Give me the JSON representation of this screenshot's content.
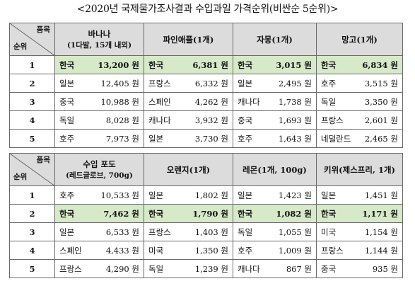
{
  "title": "<2020년 국제물가조사결과 수입과일 가격순위(비싼순 5순위)>",
  "table1": {
    "corner_top": "품목",
    "corner_bottom": "순위",
    "columns": [
      {
        "name": "바나나",
        "sub": "(1다발, 15개 내외)"
      },
      {
        "name": "파인애플(1개)",
        "sub": ""
      },
      {
        "name": "자몽(1개)",
        "sub": ""
      },
      {
        "name": "망고(1개)",
        "sub": ""
      }
    ],
    "rows": [
      {
        "rank": "1",
        "highlight": true,
        "cells": [
          {
            "country": "한국",
            "price": "13,200 원"
          },
          {
            "country": "한국",
            "price": "6,381 원"
          },
          {
            "country": "한국",
            "price": "3,015 원"
          },
          {
            "country": "한국",
            "price": "6,834 원"
          }
        ]
      },
      {
        "rank": "2",
        "highlight": false,
        "cells": [
          {
            "country": "일본",
            "price": "12,405 원"
          },
          {
            "country": "프랑스",
            "price": "6,332 원"
          },
          {
            "country": "일본",
            "price": "2,495 원"
          },
          {
            "country": "호주",
            "price": "3,515 원"
          }
        ]
      },
      {
        "rank": "3",
        "highlight": false,
        "cells": [
          {
            "country": "중국",
            "price": "10,988 원"
          },
          {
            "country": "스페인",
            "price": "4,262 원"
          },
          {
            "country": "캐나다",
            "price": "1,738 원"
          },
          {
            "country": "독일",
            "price": "3,350 원"
          }
        ]
      },
      {
        "rank": "4",
        "highlight": false,
        "cells": [
          {
            "country": "독일",
            "price": "8,028 원"
          },
          {
            "country": "캐나다",
            "price": "3,932 원"
          },
          {
            "country": "중국",
            "price": "1,693 원"
          },
          {
            "country": "프랑스",
            "price": "2,601 원"
          }
        ]
      },
      {
        "rank": "5",
        "highlight": false,
        "cells": [
          {
            "country": "호주",
            "price": "7,973 원"
          },
          {
            "country": "일본",
            "price": "3,730 원"
          },
          {
            "country": "호주",
            "price": "1,643 원"
          },
          {
            "country": "네덜란드",
            "price": "2,465 원"
          }
        ]
      }
    ]
  },
  "table2": {
    "corner_top": "품목",
    "corner_bottom": "순위",
    "columns": [
      {
        "name": "수입 포도",
        "sub": "(레드글로브, 700g)"
      },
      {
        "name": "오렌지(1개)",
        "sub": ""
      },
      {
        "name": "레몬(1개, 100g)",
        "sub": ""
      },
      {
        "name": "키위(제스프리, 1개)",
        "sub": ""
      }
    ],
    "rows": [
      {
        "rank": "1",
        "highlight": false,
        "cells": [
          {
            "country": "호주",
            "price": "10,533 원"
          },
          {
            "country": "일본",
            "price": "1,802 원"
          },
          {
            "country": "일본",
            "price": "1,423 원"
          },
          {
            "country": "일본",
            "price": "1,451 원"
          }
        ]
      },
      {
        "rank": "2",
        "highlight": true,
        "cells": [
          {
            "country": "한국",
            "price": "7,462 원"
          },
          {
            "country": "한국",
            "price": "1,790 원"
          },
          {
            "country": "한국",
            "price": "1,082 원"
          },
          {
            "country": "한국",
            "price": "1,171 원"
          }
        ]
      },
      {
        "rank": "3",
        "highlight": false,
        "cells": [
          {
            "country": "일본",
            "price": "6,533 원"
          },
          {
            "country": "프랑스",
            "price": "1,403 원"
          },
          {
            "country": "독일",
            "price": "1,055 원"
          },
          {
            "country": "미국",
            "price": "1,154 원"
          }
        ]
      },
      {
        "rank": "4",
        "highlight": false,
        "cells": [
          {
            "country": "스페인",
            "price": "4,433 원"
          },
          {
            "country": "미국",
            "price": "1,350 원"
          },
          {
            "country": "호주",
            "price": "1,009 원"
          },
          {
            "country": "프랑스",
            "price": "1,144 원"
          }
        ]
      },
      {
        "rank": "5",
        "highlight": false,
        "cells": [
          {
            "country": "프랑스",
            "price": "4,290 원"
          },
          {
            "country": "독일",
            "price": "1,239 원"
          },
          {
            "country": "캐나다",
            "price": "867 원"
          },
          {
            "country": "중국",
            "price": "935 원"
          }
        ]
      }
    ]
  }
}
